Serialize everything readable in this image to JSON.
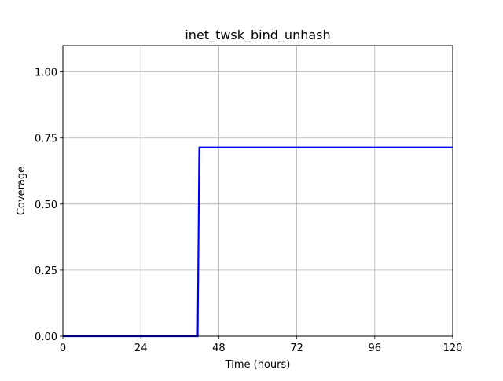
{
  "chart_data": {
    "type": "line",
    "title": "inet_twsk_bind_unhash",
    "xlabel": "Time (hours)",
    "ylabel": "Coverage",
    "xlim": [
      0,
      120
    ],
    "ylim": [
      0,
      1.1
    ],
    "xticks": [
      0,
      24,
      48,
      72,
      96,
      120
    ],
    "xtick_labels": [
      "0",
      "24",
      "48",
      "72",
      "96",
      "120"
    ],
    "yticks": [
      0.0,
      0.25,
      0.5,
      0.75,
      1.0
    ],
    "ytick_labels": [
      "0.00",
      "0.25",
      "0.50",
      "0.75",
      "1.00"
    ],
    "grid": true,
    "legend": "none",
    "series": [
      {
        "color": "#0000ff",
        "x": [
          0,
          41.5,
          42,
          120
        ],
        "y": [
          0.0,
          0.0,
          0.7143,
          0.7143
        ]
      }
    ]
  }
}
